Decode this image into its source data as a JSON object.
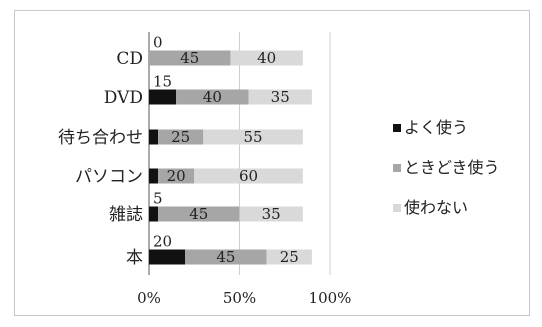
{
  "chart_data": {
    "type": "bar",
    "stacked": "percent",
    "orientation": "horizontal",
    "categories": [
      "CD",
      "DVD",
      "待ち合わせ",
      "パソコン",
      "雑誌",
      "本"
    ],
    "series": [
      {
        "name": "よく使う",
        "color": "#111111",
        "values": [
          0,
          15,
          5,
          5,
          5,
          20
        ]
      },
      {
        "name": "ときどき使う",
        "color": "#a6a6a6",
        "values": [
          45,
          40,
          25,
          20,
          45,
          45
        ]
      },
      {
        "name": "使わない",
        "color": "#d9d9d9",
        "values": [
          40,
          35,
          55,
          60,
          35,
          25
        ]
      }
    ],
    "data_labels": [
      [
        "0",
        "45",
        "40"
      ],
      [
        "15",
        "40",
        "35"
      ],
      [
        "",
        "25",
        "55"
      ],
      [
        "",
        "20",
        "60"
      ],
      [
        "5",
        "45",
        "35"
      ],
      [
        "20",
        "45",
        "25"
      ]
    ],
    "xticks": [
      "0%",
      "50%",
      "100%"
    ],
    "xlim": [
      0,
      100
    ],
    "grid": true,
    "legend_position": "right",
    "title": "",
    "xlabel": "",
    "ylabel": ""
  }
}
